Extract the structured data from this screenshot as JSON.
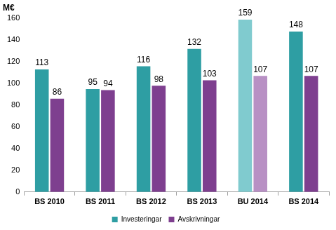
{
  "chart_data": {
    "type": "bar",
    "y_label": "M€",
    "categories": [
      "BS 2010",
      "BS 2011",
      "BS 2012",
      "BS 2013",
      "BU 2014",
      "BS 2014"
    ],
    "series": [
      {
        "name": "Investeringar",
        "color": "#2e9ea3",
        "colors": [
          "#2e9ea3",
          "#2e9ea3",
          "#2e9ea3",
          "#2e9ea3",
          "#80cbcf",
          "#2e9ea3"
        ],
        "values": [
          113,
          95,
          116,
          132,
          159,
          148
        ]
      },
      {
        "name": "Avskrivningar",
        "color": "#7e3f8f",
        "colors": [
          "#7e3f8f",
          "#7e3f8f",
          "#7e3f8f",
          "#7e3f8f",
          "#b890c4",
          "#7e3f8f"
        ],
        "values": [
          86,
          94,
          98,
          103,
          107,
          107
        ]
      }
    ],
    "ylim": [
      0,
      160
    ],
    "yticks": [
      0,
      20,
      40,
      60,
      80,
      100,
      120,
      140,
      160
    ],
    "grid": false,
    "legend": "bottom",
    "data_labels": true
  }
}
